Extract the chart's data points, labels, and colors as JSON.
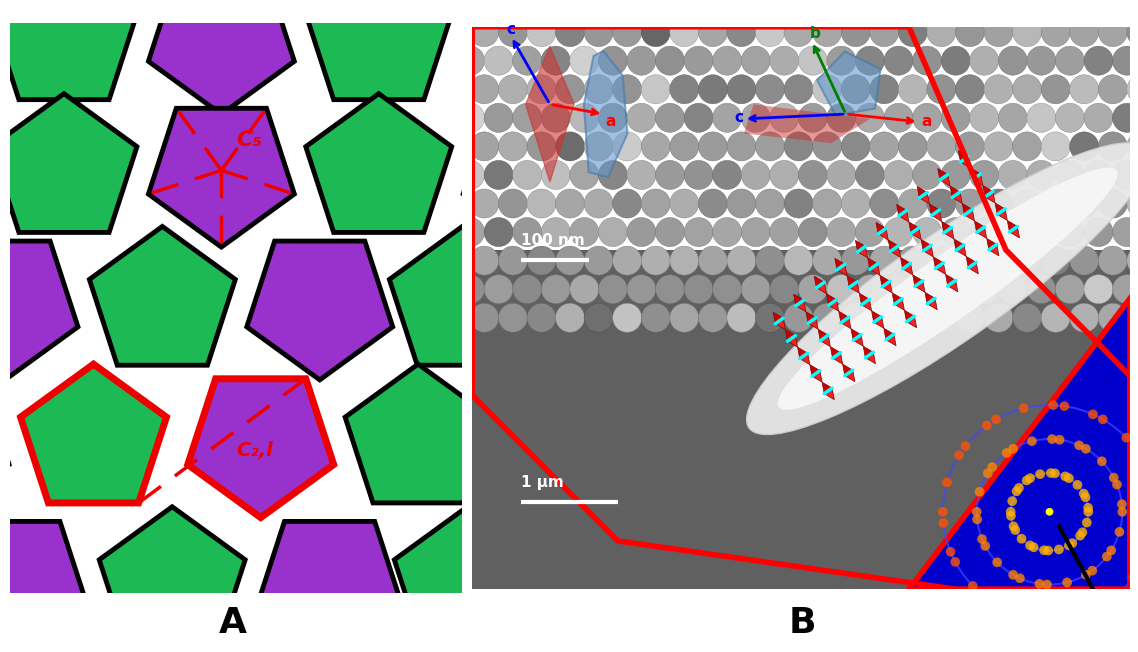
{
  "fig_width": 11.38,
  "fig_height": 6.52,
  "bg_color": "#ffffff",
  "purple_color": "#9932CC",
  "green_color": "#1DB954",
  "black_outline": "#000000",
  "red_color": "#ee0000",
  "label_A": "A",
  "label_B": "B",
  "label_fontsize": 26,
  "C5_label": "C₅",
  "C2l_label": "C₂,l"
}
